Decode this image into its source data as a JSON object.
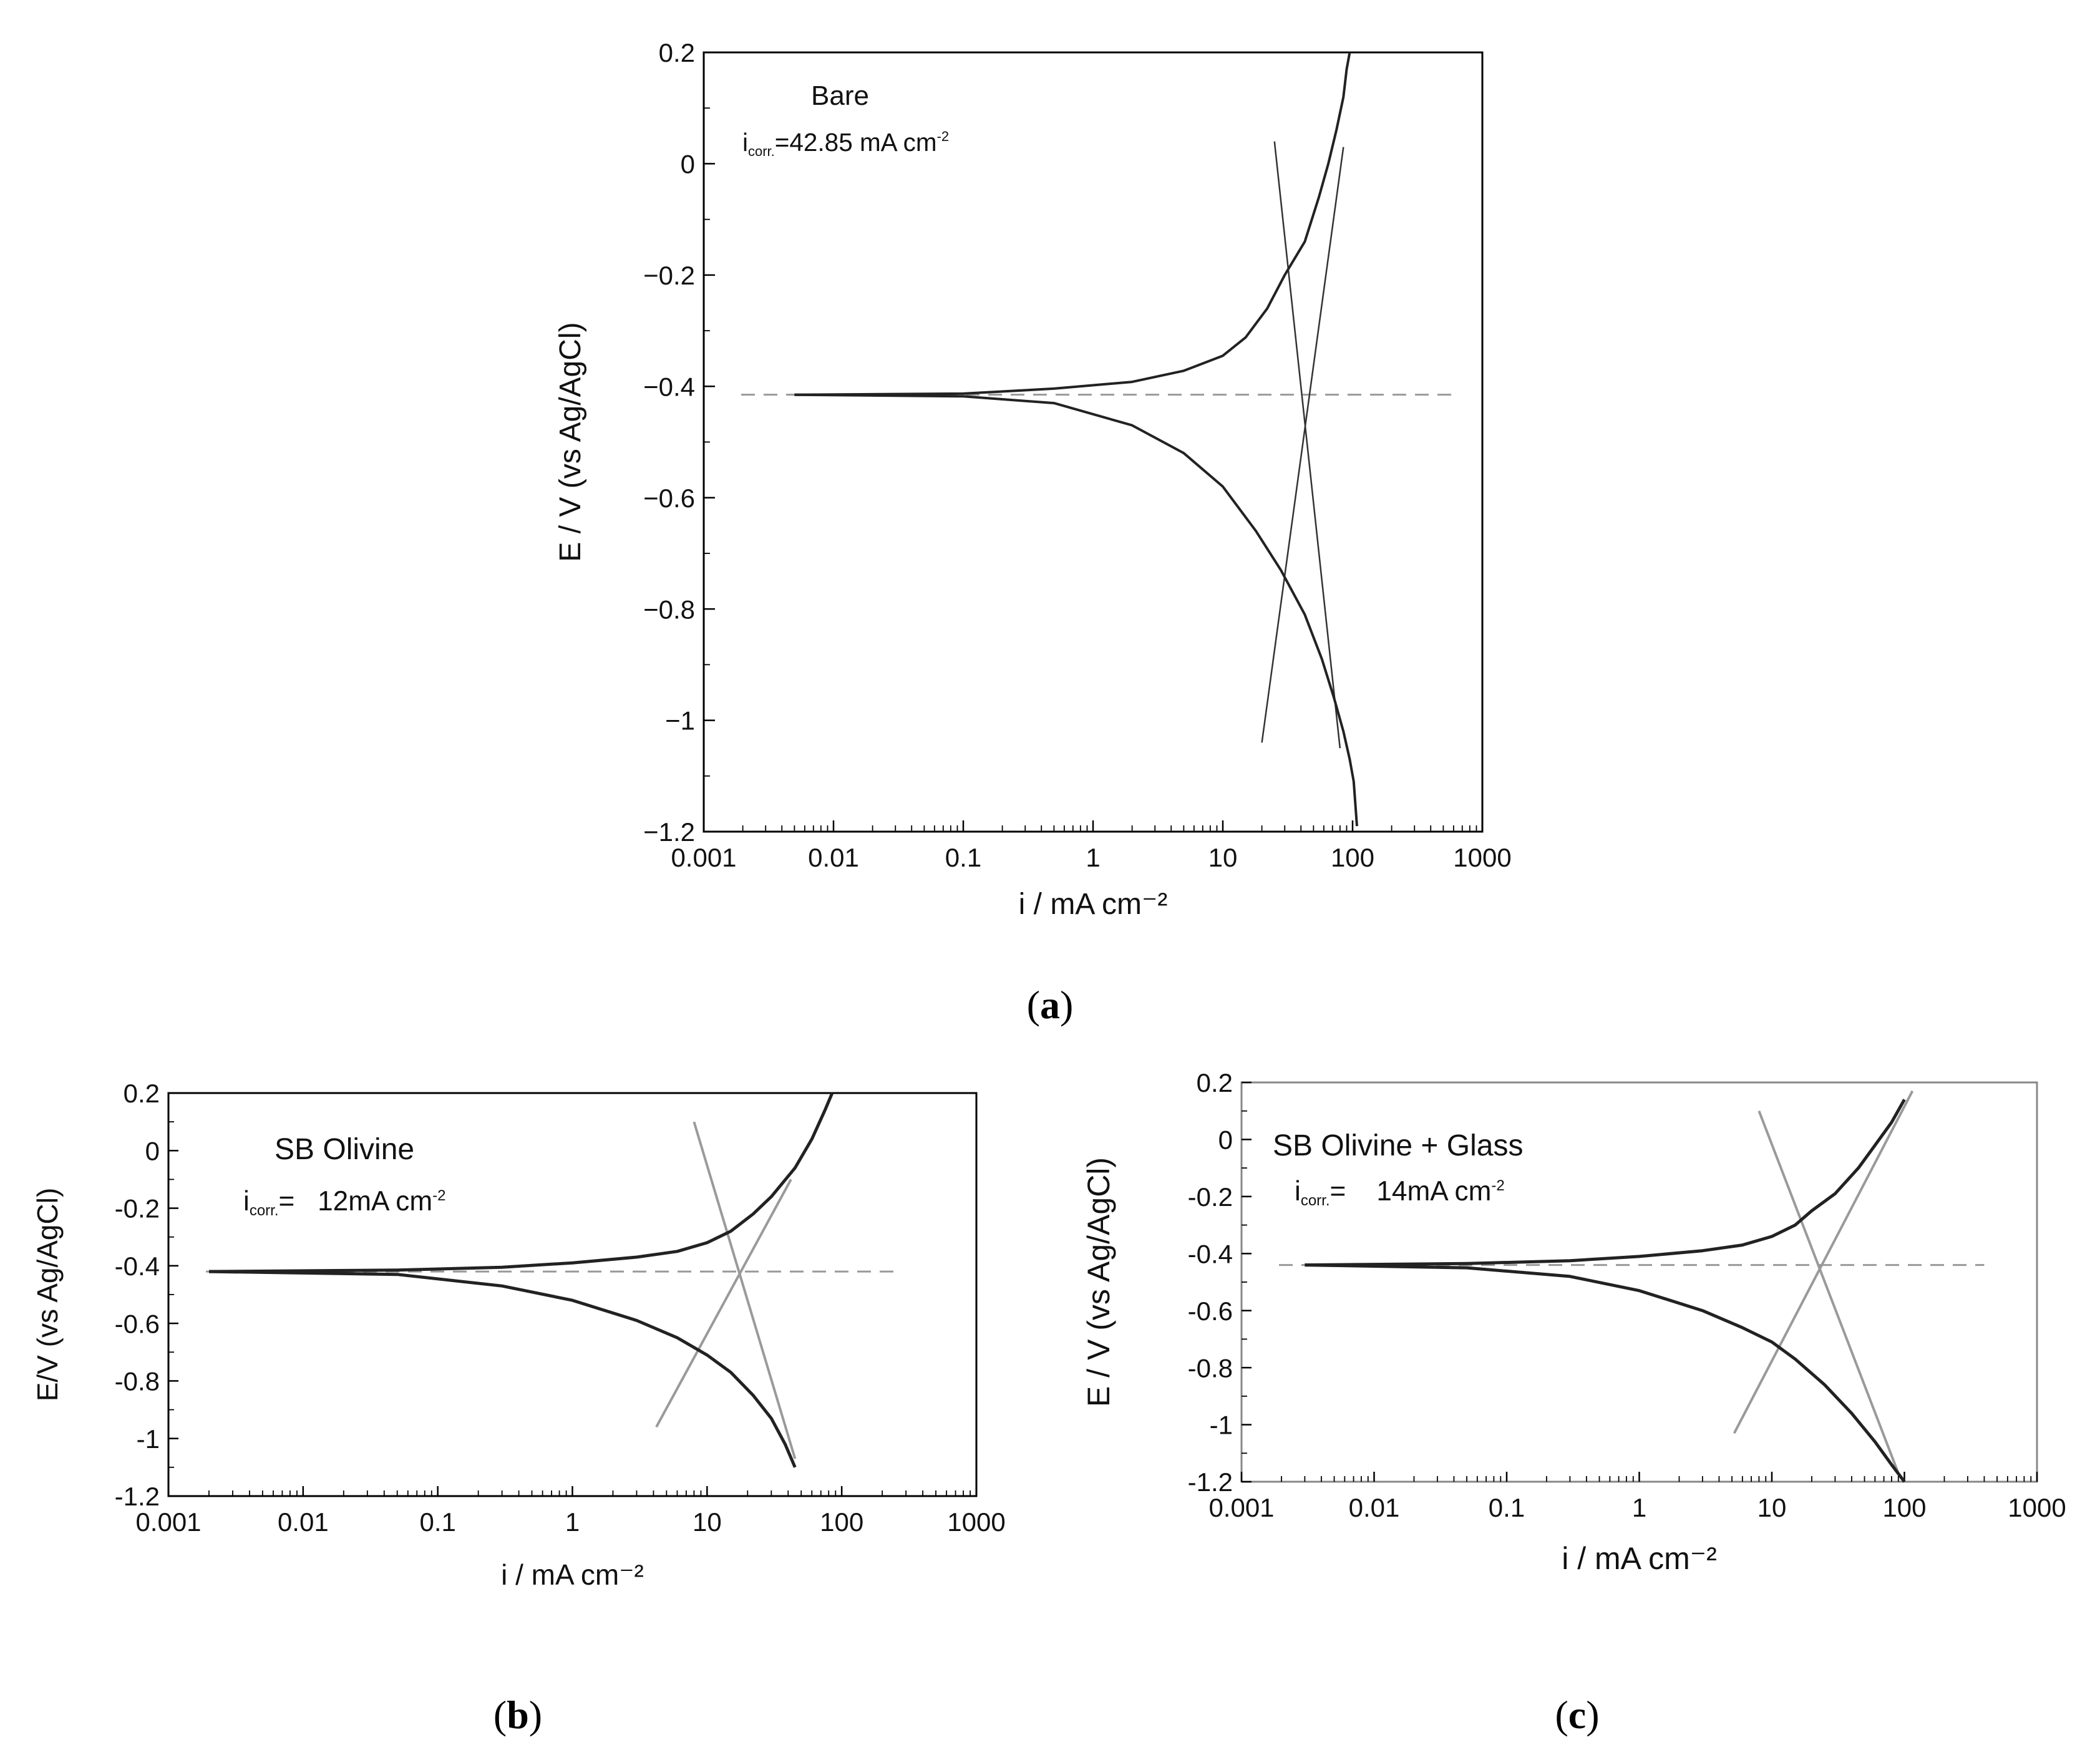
{
  "chart_data": [
    {
      "panel": "(a)",
      "type": "line",
      "xlabel": "i / mA cm⁻²",
      "ylabel": "E / V (vs Ag/AgCl)",
      "x_scale": "log",
      "xlim": [
        0.001,
        1000
      ],
      "ylim": [
        -1.2,
        0.2
      ],
      "x_ticks": [
        "0.001",
        "0.01",
        "0.1",
        "1",
        "10",
        "100",
        "1000"
      ],
      "y_ticks": [
        "0.2",
        "0",
        "−0.2",
        "−0.4",
        "−0.6",
        "−0.8",
        "−1",
        "−1.2"
      ],
      "annotation_title": "Bare",
      "annotation_icorr": "icorr.=42.85 mA cm-2",
      "e_corr": -0.415,
      "i_corr": 42.85,
      "series": [
        {
          "role": "anodic",
          "x": [
            0.005,
            0.1,
            0.5,
            2,
            5,
            10,
            15,
            22,
            30,
            42.85,
            55,
            65,
            75,
            85,
            90,
            95
          ],
          "y": [
            -0.415,
            -0.413,
            -0.404,
            -0.392,
            -0.372,
            -0.345,
            -0.312,
            -0.26,
            -0.2,
            -0.14,
            -0.06,
            0.0,
            0.06,
            0.12,
            0.17,
            0.2
          ]
        },
        {
          "role": "cathodic",
          "x": [
            0.005,
            0.1,
            0.5,
            2,
            5,
            10,
            18,
            28,
            42.85,
            58,
            72,
            85,
            95,
            102,
            105,
            108
          ],
          "y": [
            -0.415,
            -0.418,
            -0.43,
            -0.47,
            -0.52,
            -0.58,
            -0.66,
            -0.73,
            -0.81,
            -0.89,
            -0.96,
            -1.02,
            -1.07,
            -1.11,
            -1.15,
            -1.19
          ]
        }
      ],
      "tafel_lines": [
        {
          "x": [
            25,
            80
          ],
          "y": [
            0.04,
            -1.05
          ]
        },
        {
          "x": [
            20,
            85
          ],
          "y": [
            -1.04,
            0.03
          ]
        }
      ]
    },
    {
      "panel": "(b)",
      "type": "line",
      "xlabel": "i / mA cm⁻²",
      "ylabel": "E/V (vs Ag/AgCl)",
      "x_scale": "log",
      "xlim": [
        0.001,
        1000
      ],
      "ylim": [
        -1.2,
        0.2
      ],
      "x_ticks": [
        "0.001",
        "0.01",
        "0.1",
        "1",
        "10",
        "100",
        "1000"
      ],
      "y_ticks": [
        "0.2",
        "0",
        "-0.2",
        "-0.4",
        "-0.6",
        "-0.8",
        "-1",
        "-1.2"
      ],
      "annotation_title": "SB Olivine",
      "annotation_icorr": "icorr.=   12mA cm-2",
      "e_corr": -0.42,
      "i_corr": 12,
      "series": [
        {
          "role": "anodic",
          "x": [
            0.002,
            0.05,
            0.3,
            1,
            3,
            6,
            10,
            15,
            22,
            30,
            45,
            60,
            75,
            85
          ],
          "y": [
            -0.42,
            -0.415,
            -0.405,
            -0.39,
            -0.37,
            -0.35,
            -0.32,
            -0.28,
            -0.22,
            -0.16,
            -0.06,
            0.04,
            0.14,
            0.2
          ]
        },
        {
          "role": "cathodic",
          "x": [
            0.002,
            0.05,
            0.3,
            1,
            3,
            6,
            10,
            15,
            22,
            30,
            38,
            45
          ],
          "y": [
            -0.42,
            -0.43,
            -0.47,
            -0.52,
            -0.59,
            -0.65,
            -0.71,
            -0.77,
            -0.85,
            -0.93,
            -1.02,
            -1.1
          ]
        }
      ],
      "tafel_lines": [
        {
          "x": [
            8,
            45
          ],
          "y": [
            0.1,
            -1.07
          ]
        },
        {
          "x": [
            4.2,
            42
          ],
          "y": [
            -0.96,
            -0.1
          ]
        }
      ]
    },
    {
      "panel": "(c)",
      "type": "line",
      "xlabel": "i / mA cm⁻²",
      "ylabel": "E / V (vs Ag/AgCl)",
      "x_scale": "log",
      "xlim": [
        0.001,
        1000
      ],
      "ylim": [
        -1.2,
        0.2
      ],
      "x_ticks": [
        "0.001",
        "0.01",
        "0.1",
        "1",
        "10",
        "100",
        "1000"
      ],
      "y_ticks": [
        "0.2",
        "0",
        "-0.2",
        "-0.4",
        "-0.6",
        "-0.8",
        "-1",
        "-1.2"
      ],
      "annotation_title": "SB Olivine + Glass",
      "annotation_icorr": "icorr.=    14mA cm-2",
      "e_corr": -0.44,
      "i_corr": 14,
      "series": [
        {
          "role": "anodic",
          "x": [
            0.003,
            0.05,
            0.3,
            1,
            3,
            6,
            10,
            15,
            20,
            30,
            45,
            60,
            80,
            100
          ],
          "y": [
            -0.44,
            -0.435,
            -0.425,
            -0.41,
            -0.39,
            -0.37,
            -0.34,
            -0.3,
            -0.25,
            -0.19,
            -0.1,
            -0.02,
            0.06,
            0.14
          ]
        },
        {
          "role": "cathodic",
          "x": [
            0.003,
            0.05,
            0.3,
            1,
            3,
            6,
            10,
            15,
            25,
            40,
            60,
            80,
            100
          ],
          "y": [
            -0.44,
            -0.45,
            -0.48,
            -0.53,
            -0.6,
            -0.66,
            -0.71,
            -0.77,
            -0.86,
            -0.96,
            -1.06,
            -1.14,
            -1.2
          ]
        }
      ],
      "tafel_lines": [
        {
          "x": [
            8,
            90
          ],
          "y": [
            0.1,
            -1.17
          ]
        },
        {
          "x": [
            5.2,
            115
          ],
          "y": [
            -1.03,
            0.17
          ]
        }
      ]
    }
  ],
  "sub_labels": {
    "a": "(a)",
    "b": "(b)",
    "c": "(c)"
  },
  "colors": {
    "curve": "#222222",
    "tafel_a": "#333333",
    "tafel_bc": "#9a9a9a",
    "dashed": "#999999"
  }
}
